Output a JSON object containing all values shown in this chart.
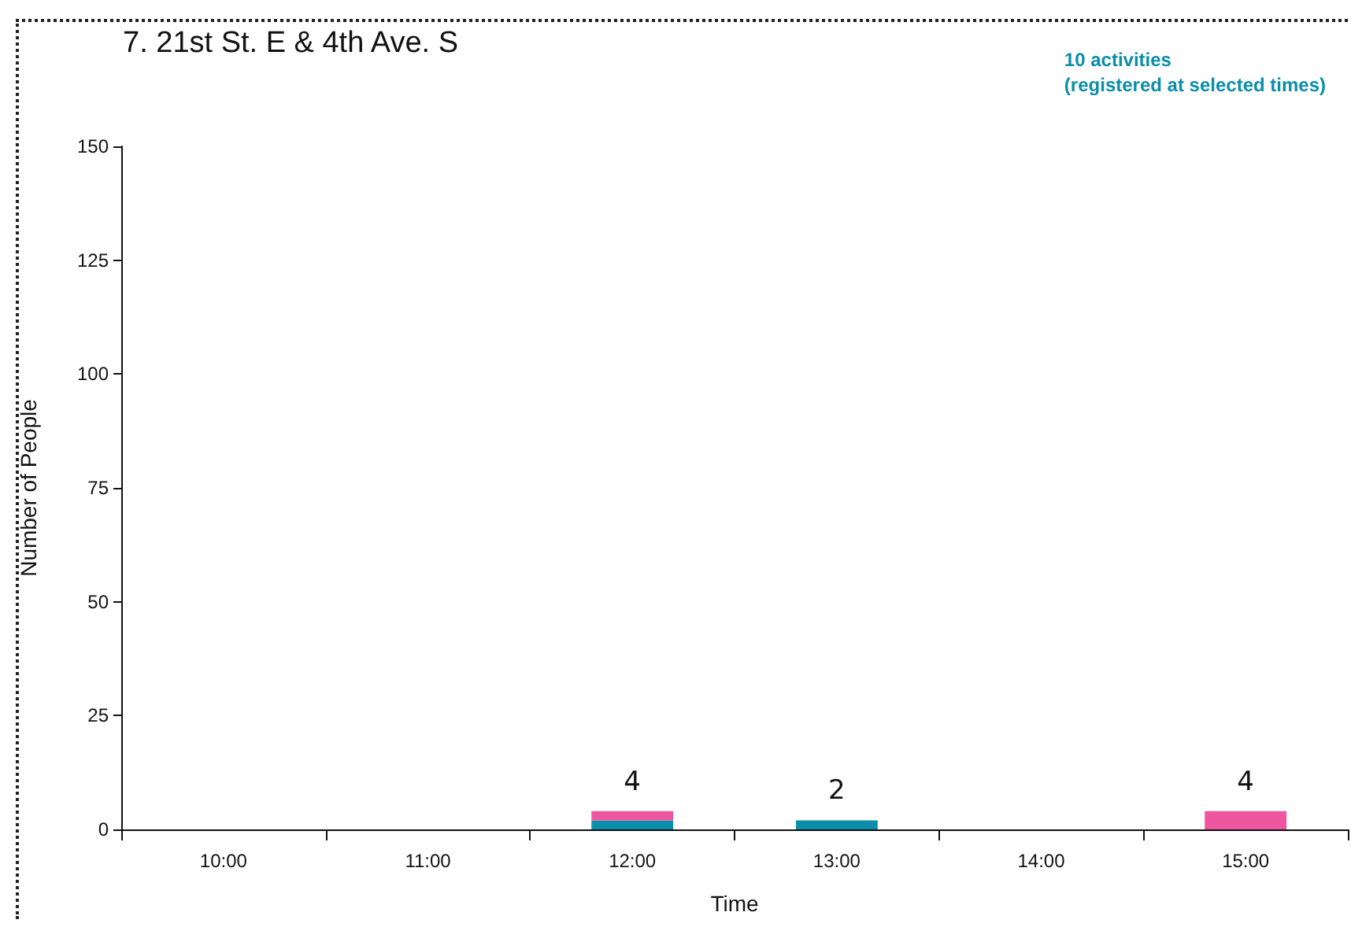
{
  "chart_data": {
    "type": "bar",
    "title": "7. 21st St. E & 4th Ave. S",
    "xlabel": "Time",
    "ylabel": "Number of People",
    "annotations": [
      "10 activities\n(registered at selected times)"
    ],
    "categories": [
      "10:00",
      "11:00",
      "12:00",
      "13:00",
      "14:00",
      "15:00"
    ],
    "stacked": true,
    "series": [
      {
        "color": "#0b8ea9",
        "values": [
          0,
          0,
          2,
          2,
          0,
          0
        ]
      },
      {
        "color": "#ef56a0",
        "values": [
          0,
          0,
          2,
          0,
          0,
          4
        ]
      }
    ],
    "totals": [
      null,
      null,
      "4",
      "2",
      null,
      "4"
    ],
    "ylim": [
      0,
      150
    ],
    "yticks": [
      0,
      25,
      50,
      75,
      100,
      125,
      150
    ],
    "grid": false
  }
}
